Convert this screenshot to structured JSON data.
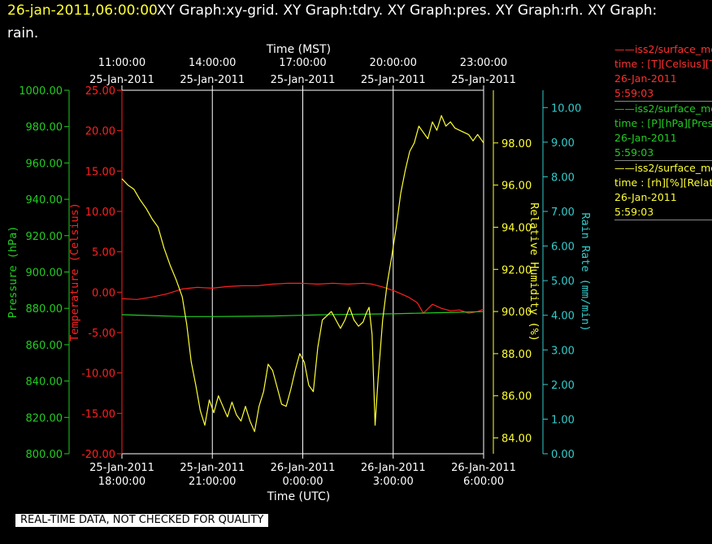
{
  "header": {
    "timestamp": "26-jan-2011,06:00:00",
    "title_line1": "XY Graph:xy-grid.  XY Graph:tdry.  XY Graph:pres.  XY Graph:rh.  XY Graph:",
    "title_line2": "rain."
  },
  "colors": {
    "background": "#000000",
    "temperature": "#ff2020",
    "pressure": "#22cc22",
    "humidity": "#ffff33",
    "rain": "#33cccc",
    "timestamp": "#ffff33",
    "grid": "#ffffff"
  },
  "footer": {
    "note": "REAL-TIME DATA, NOT CHECKED FOR QUALITY"
  },
  "legend": [
    {
      "series": "temperature",
      "name": "iss2/surface_me",
      "units": "time : [T][Celsius][T",
      "date": "26-Jan-2011",
      "time": "5:59:03"
    },
    {
      "series": "pressure",
      "name": "iss2/surface_me",
      "units": "time : [P][hPa][Pres",
      "date": "26-Jan-2011",
      "time": "5:59:03"
    },
    {
      "series": "humidity",
      "name": "iss2/surface_me",
      "units": "time : [rh][%][Relati",
      "date": "26-Jan-2011",
      "time": "5:59:03"
    }
  ],
  "chart_data": {
    "type": "line",
    "grid": true,
    "x_top_label": "Time (MST)",
    "x_bottom_label": "Time (UTC)",
    "x_range_utc_hours": [
      18,
      30
    ],
    "top_ticks": [
      {
        "time": "11:00:00",
        "date": "25-Jan-2011"
      },
      {
        "time": "14:00:00",
        "date": "25-Jan-2011"
      },
      {
        "time": "17:00:00",
        "date": "25-Jan-2011"
      },
      {
        "time": "20:00:00",
        "date": "25-Jan-2011"
      },
      {
        "time": "23:00:00",
        "date": "25-Jan-2011"
      }
    ],
    "bottom_ticks": [
      {
        "date": "25-Jan-2011",
        "time": "18:00:00"
      },
      {
        "date": "25-Jan-2011",
        "time": "21:00:00"
      },
      {
        "date": "26-Jan-2011",
        "time": "0:00:00"
      },
      {
        "date": "26-Jan-2011",
        "time": "3:00:00"
      },
      {
        "date": "26-Jan-2011",
        "time": "6:00:00"
      }
    ],
    "axes": {
      "pressure": {
        "label": "Pressure (hPa)",
        "range": [
          800,
          1000
        ],
        "ticks": [
          "800.00",
          "820.00",
          "840.00",
          "860.00",
          "880.00",
          "900.00",
          "920.00",
          "940.00",
          "960.00",
          "980.00",
          "1000.00"
        ]
      },
      "temperature": {
        "label": "Temperature (Celsius)",
        "range": [
          -20,
          25
        ],
        "ticks": [
          "-20.00",
          "-15.00",
          "-10.00",
          "-5.00",
          "0.00",
          "5.00",
          "10.00",
          "15.00",
          "20.00",
          "25.00"
        ]
      },
      "humidity": {
        "label": "Relative Humidity (%)",
        "range": [
          83.25,
          100.5
        ],
        "ticks": [
          "84.00",
          "86.00",
          "88.00",
          "90.00",
          "92.00",
          "94.00",
          "96.00",
          "98.00"
        ]
      },
      "rain": {
        "label": "Rain Rate (mm/min)",
        "range": [
          0,
          10.5
        ],
        "ticks": [
          "0.00",
          "1.00",
          "2.00",
          "3.00",
          "4.00",
          "5.00",
          "6.00",
          "7.00",
          "8.00",
          "9.00",
          "10.00"
        ]
      }
    },
    "series": [
      {
        "name": "Temperature",
        "axis": "temperature",
        "x_utc_hours": [
          18.0,
          18.5,
          19.0,
          19.5,
          20.0,
          20.5,
          21.0,
          21.5,
          22.0,
          22.5,
          23.0,
          23.5,
          24.0,
          24.5,
          25.0,
          25.5,
          26.0,
          26.3,
          26.7,
          27.0,
          27.2,
          27.5,
          27.8,
          28.0,
          28.3,
          28.6,
          28.9,
          29.2,
          29.5,
          29.8,
          30.0
        ],
        "values": [
          -0.8,
          -0.9,
          -0.6,
          -0.2,
          0.4,
          0.6,
          0.5,
          0.7,
          0.8,
          0.8,
          1.0,
          1.1,
          1.1,
          1.0,
          1.1,
          1.0,
          1.1,
          1.0,
          0.6,
          0.2,
          -0.1,
          -0.6,
          -1.3,
          -2.6,
          -1.5,
          -2.0,
          -2.3,
          -2.2,
          -2.6,
          -2.4,
          -2.1
        ]
      },
      {
        "name": "Pressure",
        "axis": "pressure",
        "x_utc_hours": [
          18.0,
          19.0,
          20.0,
          21.0,
          22.0,
          23.0,
          24.0,
          25.0,
          26.0,
          27.0,
          28.0,
          29.0,
          30.0
        ],
        "values": [
          876.5,
          876.0,
          875.5,
          875.5,
          875.6,
          875.8,
          876.2,
          876.6,
          876.8,
          877.0,
          877.4,
          877.8,
          878.2
        ]
      },
      {
        "name": "Relative Humidity",
        "axis": "humidity",
        "x_utc_hours": [
          18.0,
          18.2,
          18.4,
          18.6,
          18.8,
          19.0,
          19.2,
          19.4,
          19.6,
          19.8,
          20.0,
          20.15,
          20.3,
          20.45,
          20.6,
          20.75,
          20.9,
          21.05,
          21.2,
          21.35,
          21.5,
          21.65,
          21.8,
          21.95,
          22.1,
          22.25,
          22.4,
          22.55,
          22.7,
          22.85,
          23.0,
          23.15,
          23.3,
          23.45,
          23.6,
          23.75,
          23.9,
          24.05,
          24.2,
          24.35,
          24.5,
          24.65,
          24.8,
          24.95,
          25.1,
          25.25,
          25.4,
          25.55,
          25.7,
          25.85,
          26.0,
          26.1,
          26.2,
          26.3,
          26.4,
          26.5,
          26.65,
          26.8,
          26.95,
          27.1,
          27.25,
          27.4,
          27.55,
          27.7,
          27.85,
          28.0,
          28.15,
          28.3,
          28.45,
          28.6,
          28.75,
          28.9,
          29.05,
          29.2,
          29.35,
          29.5,
          29.65,
          29.8,
          30.0
        ],
        "values": [
          96.3,
          96.0,
          95.8,
          95.3,
          94.9,
          94.4,
          94.0,
          93.0,
          92.2,
          91.5,
          90.7,
          89.4,
          87.6,
          86.5,
          85.3,
          84.6,
          85.8,
          85.2,
          86.0,
          85.5,
          85.0,
          85.7,
          85.1,
          84.8,
          85.5,
          84.8,
          84.3,
          85.5,
          86.2,
          87.5,
          87.2,
          86.4,
          85.6,
          85.5,
          86.3,
          87.2,
          88.0,
          87.6,
          86.5,
          86.2,
          88.3,
          89.6,
          89.8,
          90.0,
          89.6,
          89.2,
          89.6,
          90.2,
          89.6,
          89.3,
          89.5,
          89.9,
          90.2,
          88.9,
          84.6,
          86.8,
          89.6,
          91.3,
          92.6,
          94.0,
          95.6,
          96.7,
          97.6,
          98.0,
          98.8,
          98.5,
          98.2,
          99.0,
          98.6,
          99.3,
          98.8,
          99.0,
          98.7,
          98.6,
          98.5,
          98.4,
          98.1,
          98.4,
          98.0
        ]
      }
    ]
  }
}
